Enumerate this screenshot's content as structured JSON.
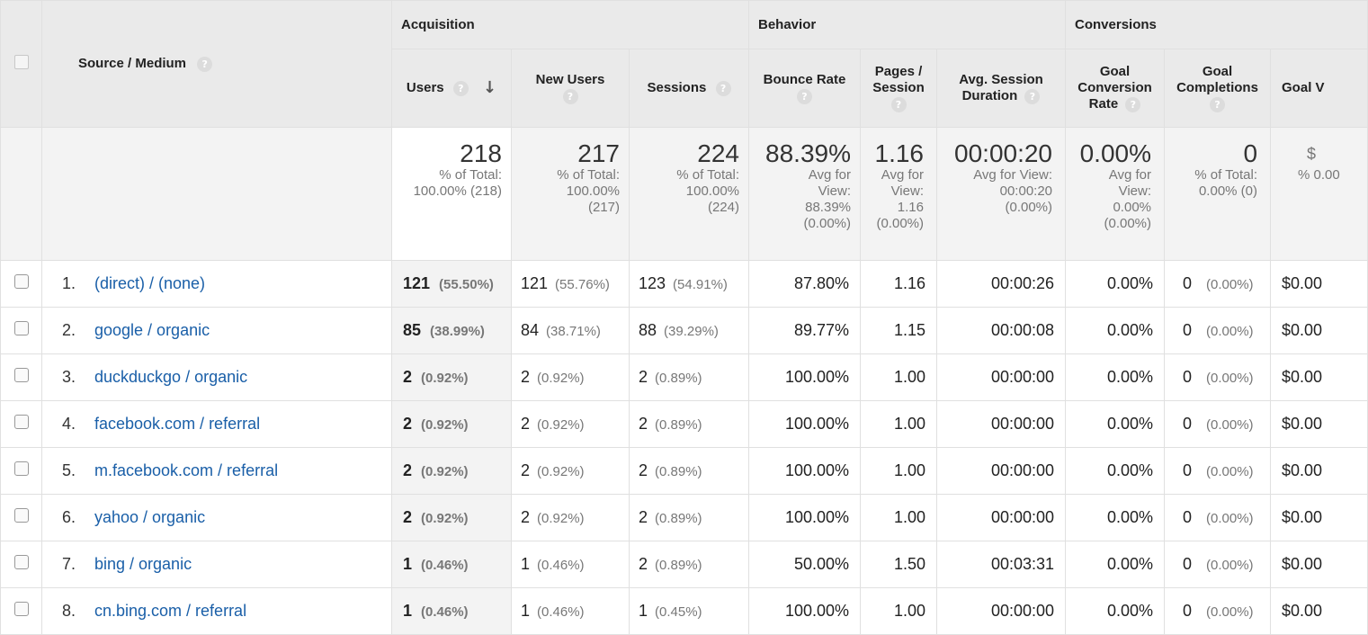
{
  "groups": {
    "acquisition": "Acquisition",
    "behavior": "Behavior",
    "conversions": "Conversions"
  },
  "dimension_header": "Source / Medium",
  "help_icon": "?",
  "columns": {
    "users": "Users",
    "new_users": "New Users",
    "sessions": "Sessions",
    "bounce_rate": "Bounce Rate",
    "pages_session": "Pages / Session",
    "avg_session": "Avg. Session Duration",
    "goal_conv_rate": "Goal Conversion Rate",
    "goal_completions": "Goal Completions",
    "goal_value": "Goal V"
  },
  "totals": {
    "users": {
      "value": "218",
      "sub": "% of Total: 100.00% (218)"
    },
    "new_users": {
      "value": "217",
      "sub": "% of Total: 100.00% (217)"
    },
    "sessions": {
      "value": "224",
      "sub": "% of Total: 100.00% (224)"
    },
    "bounce_rate": {
      "value": "88.39%",
      "sub": "Avg for View: 88.39% (0.00%)"
    },
    "pages_session": {
      "value": "1.16",
      "sub": "Avg for View: 1.16 (0.00%)"
    },
    "avg_session": {
      "value": "00:00:20",
      "sub": "Avg for View: 00:00:20 (0.00%)"
    },
    "goal_conv_rate": {
      "value": "0.00%",
      "sub": "Avg for View: 0.00% (0.00%)"
    },
    "goal_completions": {
      "value": "0",
      "sub": "% of Total: 0.00% (0)"
    },
    "goal_value": {
      "value": "$",
      "sub": "% 0.00"
    }
  },
  "rows": [
    {
      "rank": "1.",
      "source": "(direct) / (none)",
      "users": "121",
      "users_pct": "(55.50%)",
      "new_users": "121",
      "new_users_pct": "(55.76%)",
      "sessions": "123",
      "sessions_pct": "(54.91%)",
      "bounce": "87.80%",
      "pages": "1.16",
      "duration": "00:00:26",
      "conv": "0.00%",
      "goals": "0",
      "goals_pct": "(0.00%)",
      "value": "$0.00"
    },
    {
      "rank": "2.",
      "source": "google / organic",
      "users": "85",
      "users_pct": "(38.99%)",
      "new_users": "84",
      "new_users_pct": "(38.71%)",
      "sessions": "88",
      "sessions_pct": "(39.29%)",
      "bounce": "89.77%",
      "pages": "1.15",
      "duration": "00:00:08",
      "conv": "0.00%",
      "goals": "0",
      "goals_pct": "(0.00%)",
      "value": "$0.00"
    },
    {
      "rank": "3.",
      "source": "duckduckgo / organic",
      "users": "2",
      "users_pct": "(0.92%)",
      "new_users": "2",
      "new_users_pct": "(0.92%)",
      "sessions": "2",
      "sessions_pct": "(0.89%)",
      "bounce": "100.00%",
      "pages": "1.00",
      "duration": "00:00:00",
      "conv": "0.00%",
      "goals": "0",
      "goals_pct": "(0.00%)",
      "value": "$0.00"
    },
    {
      "rank": "4.",
      "source": "facebook.com / referral",
      "users": "2",
      "users_pct": "(0.92%)",
      "new_users": "2",
      "new_users_pct": "(0.92%)",
      "sessions": "2",
      "sessions_pct": "(0.89%)",
      "bounce": "100.00%",
      "pages": "1.00",
      "duration": "00:00:00",
      "conv": "0.00%",
      "goals": "0",
      "goals_pct": "(0.00%)",
      "value": "$0.00"
    },
    {
      "rank": "5.",
      "source": "m.facebook.com / referral",
      "users": "2",
      "users_pct": "(0.92%)",
      "new_users": "2",
      "new_users_pct": "(0.92%)",
      "sessions": "2",
      "sessions_pct": "(0.89%)",
      "bounce": "100.00%",
      "pages": "1.00",
      "duration": "00:00:00",
      "conv": "0.00%",
      "goals": "0",
      "goals_pct": "(0.00%)",
      "value": "$0.00"
    },
    {
      "rank": "6.",
      "source": "yahoo / organic",
      "users": "2",
      "users_pct": "(0.92%)",
      "new_users": "2",
      "new_users_pct": "(0.92%)",
      "sessions": "2",
      "sessions_pct": "(0.89%)",
      "bounce": "100.00%",
      "pages": "1.00",
      "duration": "00:00:00",
      "conv": "0.00%",
      "goals": "0",
      "goals_pct": "(0.00%)",
      "value": "$0.00"
    },
    {
      "rank": "7.",
      "source": "bing / organic",
      "users": "1",
      "users_pct": "(0.46%)",
      "new_users": "1",
      "new_users_pct": "(0.46%)",
      "sessions": "2",
      "sessions_pct": "(0.89%)",
      "bounce": "50.00%",
      "pages": "1.50",
      "duration": "00:03:31",
      "conv": "0.00%",
      "goals": "0",
      "goals_pct": "(0.00%)",
      "value": "$0.00"
    },
    {
      "rank": "8.",
      "source": "cn.bing.com / referral",
      "users": "1",
      "users_pct": "(0.46%)",
      "new_users": "1",
      "new_users_pct": "(0.46%)",
      "sessions": "1",
      "sessions_pct": "(0.45%)",
      "bounce": "100.00%",
      "pages": "1.00",
      "duration": "00:00:00",
      "conv": "0.00%",
      "goals": "0",
      "goals_pct": "(0.00%)",
      "value": "$0.00"
    }
  ]
}
